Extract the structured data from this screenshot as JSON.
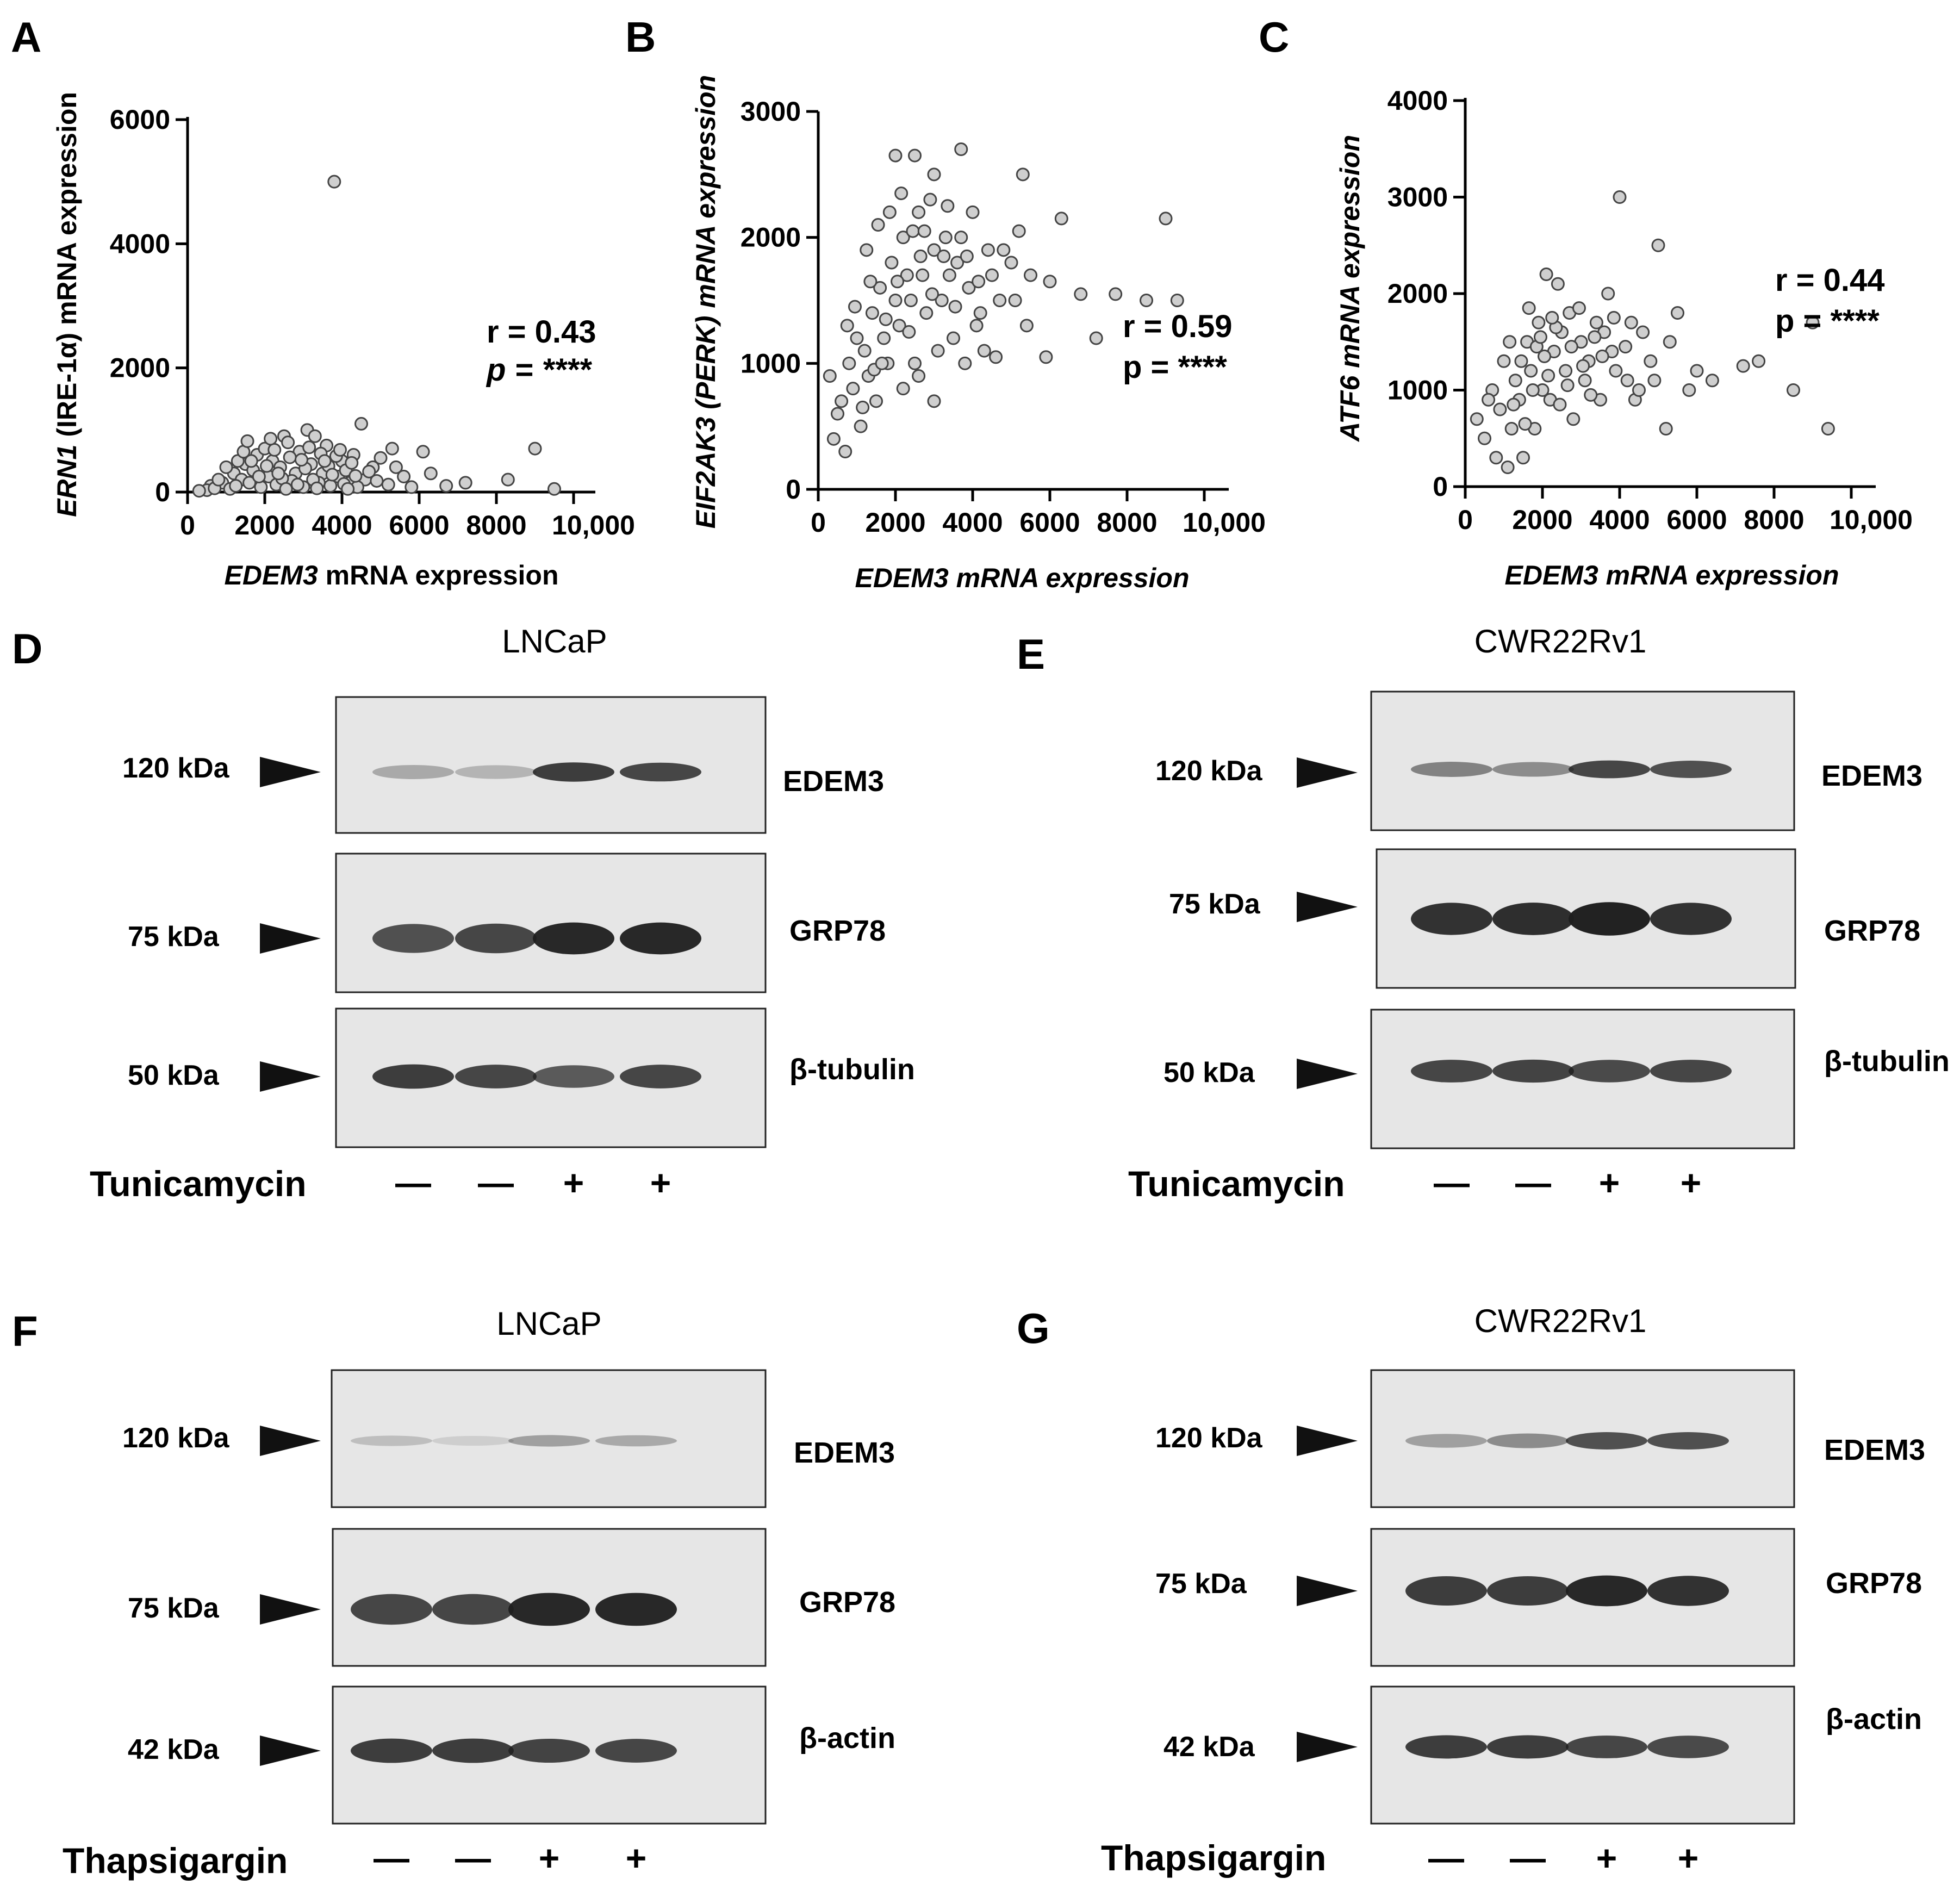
{
  "chart_data": [
    {
      "panel": "A",
      "type": "scatter",
      "xlabel_italic": "EDEM3",
      "xlabel_rest": " mRNA expression",
      "ylabel_italic": "ERN1",
      "ylabel_rest": " (IRE-1α) mRNA expression",
      "xticks": [
        "0",
        "2000",
        "4000",
        "6000",
        "8000",
        "10,000"
      ],
      "yticks": [
        "0",
        "2000",
        "4000",
        "6000"
      ],
      "xlim": [
        0,
        10000
      ],
      "ylim": [
        0,
        6000
      ],
      "r_label": "r = 0.43",
      "p_label": "p = ****",
      "points": [
        [
          3800,
          5000
        ],
        [
          4500,
          1100
        ],
        [
          3100,
          1000
        ],
        [
          2500,
          900
        ],
        [
          5300,
          700
        ],
        [
          6100,
          650
        ],
        [
          9000,
          700
        ],
        [
          8300,
          200
        ],
        [
          7200,
          150
        ],
        [
          9500,
          50
        ],
        [
          1200,
          300
        ],
        [
          1500,
          450
        ],
        [
          1800,
          600
        ],
        [
          2000,
          700
        ],
        [
          2200,
          500
        ],
        [
          2600,
          800
        ],
        [
          2900,
          650
        ],
        [
          3300,
          900
        ],
        [
          3600,
          750
        ],
        [
          4000,
          500
        ],
        [
          4300,
          600
        ],
        [
          4800,
          400
        ],
        [
          5000,
          550
        ],
        [
          5600,
          250
        ],
        [
          6300,
          300
        ],
        [
          600,
          100
        ],
        [
          900,
          150
        ],
        [
          1100,
          50
        ],
        [
          1400,
          200
        ],
        [
          1700,
          350
        ],
        [
          2100,
          250
        ],
        [
          2400,
          400
        ],
        [
          2800,
          300
        ],
        [
          3200,
          450
        ],
        [
          3500,
          300
        ],
        [
          3900,
          250
        ],
        [
          4200,
          150
        ],
        [
          4600,
          200
        ],
        [
          5200,
          120
        ],
        [
          5800,
          80
        ],
        [
          1300,
          500
        ],
        [
          1600,
          150
        ],
        [
          1900,
          80
        ],
        [
          2300,
          120
        ],
        [
          2700,
          180
        ],
        [
          3000,
          80
        ],
        [
          3400,
          150
        ],
        [
          3700,
          100
        ],
        [
          4100,
          350
        ],
        [
          4400,
          80
        ],
        [
          500,
          30
        ],
        [
          700,
          60
        ],
        [
          800,
          200
        ],
        [
          1000,
          400
        ],
        [
          1250,
          100
        ],
        [
          1450,
          650
        ],
        [
          1650,
          500
        ],
        [
          1850,
          250
        ],
        [
          2050,
          420
        ],
        [
          2250,
          680
        ],
        [
          2450,
          220
        ],
        [
          2650,
          560
        ],
        [
          2850,
          120
        ],
        [
          3050,
          380
        ],
        [
          3250,
          200
        ],
        [
          3450,
          620
        ],
        [
          3650,
          420
        ],
        [
          3850,
          580
        ],
        [
          4050,
          130
        ],
        [
          4250,
          470
        ],
        [
          4700,
          330
        ],
        [
          4900,
          180
        ],
        [
          5400,
          400
        ],
        [
          6700,
          100
        ],
        [
          300,
          20
        ],
        [
          1550,
          820
        ],
        [
          2150,
          860
        ],
        [
          2350,
          300
        ],
        [
          2550,
          50
        ],
        [
          2950,
          520
        ],
        [
          3150,
          720
        ],
        [
          3350,
          60
        ],
        [
          3550,
          500
        ],
        [
          3750,
          280
        ],
        [
          3950,
          680
        ],
        [
          4150,
          50
        ],
        [
          4350,
          260
        ]
      ]
    },
    {
      "panel": "B",
      "type": "scatter",
      "xlabel_italic": "EDEM3 mRNA expression",
      "xlabel_rest": "",
      "ylabel_italic": "EIF2AK3 (PERK) mRNA expression",
      "ylabel_rest": "",
      "xticks": [
        "0",
        "2000",
        "4000",
        "6000",
        "8000",
        "10,000"
      ],
      "yticks": [
        "0",
        "1000",
        "2000",
        "3000"
      ],
      "xlim": [
        0,
        10000
      ],
      "ylim": [
        0,
        3000
      ],
      "r_label": "r = 0.59",
      "p_label": "p = ****",
      "points": [
        [
          3700,
          2700
        ],
        [
          2000,
          2650
        ],
        [
          2500,
          2650
        ],
        [
          3000,
          2500
        ],
        [
          5300,
          2500
        ],
        [
          9000,
          2150
        ],
        [
          6300,
          2150
        ],
        [
          5200,
          2050
        ],
        [
          5500,
          1700
        ],
        [
          6000,
          1650
        ],
        [
          6800,
          1550
        ],
        [
          7700,
          1550
        ],
        [
          8500,
          1500
        ],
        [
          9300,
          1500
        ],
        [
          7200,
          1200
        ],
        [
          5900,
          1050
        ],
        [
          4600,
          1050
        ],
        [
          300,
          900
        ],
        [
          400,
          400
        ],
        [
          700,
          300
        ],
        [
          1100,
          500
        ],
        [
          1500,
          700
        ],
        [
          1800,
          1000
        ],
        [
          2100,
          1300
        ],
        [
          2400,
          1500
        ],
        [
          2700,
          1700
        ],
        [
          3000,
          1900
        ],
        [
          3300,
          2000
        ],
        [
          3600,
          1800
        ],
        [
          3900,
          1600
        ],
        [
          4200,
          1400
        ],
        [
          4500,
          1700
        ],
        [
          4800,
          1900
        ],
        [
          5100,
          1500
        ],
        [
          5400,
          1300
        ],
        [
          900,
          800
        ],
        [
          1200,
          1100
        ],
        [
          1400,
          1400
        ],
        [
          1600,
          1600
        ],
        [
          1900,
          1800
        ],
        [
          2200,
          2000
        ],
        [
          2600,
          2200
        ],
        [
          2900,
          2300
        ],
        [
          3200,
          1500
        ],
        [
          3500,
          1200
        ],
        [
          3800,
          1000
        ],
        [
          4100,
          1300
        ],
        [
          4400,
          1900
        ],
        [
          600,
          700
        ],
        [
          800,
          1000
        ],
        [
          1000,
          1200
        ],
        [
          1300,
          900
        ],
        [
          1700,
          1200
        ],
        [
          2000,
          1500
        ],
        [
          2300,
          1700
        ],
        [
          2500,
          1000
        ],
        [
          2800,
          1400
        ],
        [
          3100,
          1100
        ],
        [
          3400,
          1700
        ],
        [
          3700,
          2000
        ],
        [
          4000,
          2200
        ],
        [
          4300,
          1100
        ],
        [
          4700,
          1500
        ],
        [
          5000,
          1800
        ],
        [
          500,
          600
        ],
        [
          1150,
          650
        ],
        [
          1450,
          950
        ],
        [
          1750,
          1350
        ],
        [
          2050,
          1650
        ],
        [
          2350,
          1250
        ],
        [
          2650,
          1850
        ],
        [
          2950,
          1550
        ],
        [
          3250,
          1850
        ],
        [
          3550,
          1450
        ],
        [
          3850,
          1850
        ],
        [
          4150,
          1650
        ],
        [
          2150,
          2350
        ],
        [
          2450,
          2050
        ],
        [
          1550,
          2100
        ],
        [
          1250,
          1900
        ],
        [
          1850,
          2200
        ],
        [
          2750,
          2050
        ],
        [
          3350,
          2250
        ],
        [
          1650,
          1000
        ],
        [
          950,
          1450
        ],
        [
          750,
          1300
        ],
        [
          1350,
          1650
        ],
        [
          2200,
          800
        ],
        [
          2600,
          900
        ],
        [
          3000,
          700
        ]
      ]
    },
    {
      "panel": "C",
      "type": "scatter",
      "xlabel_italic": "EDEM3 mRNA expression",
      "xlabel_rest": "",
      "ylabel_italic": "ATF6 mRNA expression",
      "ylabel_rest": "",
      "xticks": [
        "0",
        "2000",
        "4000",
        "6000",
        "8000",
        "10,000"
      ],
      "yticks": [
        "0",
        "1000",
        "2000",
        "3000",
        "4000"
      ],
      "xlim": [
        0,
        10000
      ],
      "ylim": [
        0,
        4000
      ],
      "r_label": "r = 0.44",
      "p_label": "p = ****",
      "points": [
        [
          4000,
          3000
        ],
        [
          5000,
          2500
        ],
        [
          9000,
          1700
        ],
        [
          9400,
          600
        ],
        [
          8500,
          1000
        ],
        [
          7600,
          1300
        ],
        [
          7200,
          1250
        ],
        [
          5500,
          1800
        ],
        [
          6000,
          1200
        ],
        [
          5800,
          1000
        ],
        [
          6400,
          1100
        ],
        [
          5200,
          600
        ],
        [
          3700,
          2000
        ],
        [
          2400,
          2100
        ],
        [
          2100,
          2200
        ],
        [
          300,
          700
        ],
        [
          500,
          500
        ],
        [
          800,
          300
        ],
        [
          1100,
          200
        ],
        [
          1500,
          300
        ],
        [
          1800,
          600
        ],
        [
          2200,
          900
        ],
        [
          2600,
          1200
        ],
        [
          3000,
          1500
        ],
        [
          3400,
          1700
        ],
        [
          3800,
          1400
        ],
        [
          4200,
          1100
        ],
        [
          4600,
          1600
        ],
        [
          700,
          1000
        ],
        [
          1000,
          1300
        ],
        [
          1300,
          1100
        ],
        [
          1600,
          1500
        ],
        [
          1900,
          1700
        ],
        [
          2300,
          1400
        ],
        [
          2700,
          1800
        ],
        [
          3100,
          1100
        ],
        [
          3500,
          900
        ],
        [
          3900,
          1200
        ],
        [
          4300,
          1700
        ],
        [
          900,
          800
        ],
        [
          1200,
          600
        ],
        [
          1400,
          900
        ],
        [
          1700,
          1200
        ],
        [
          2000,
          1000
        ],
        [
          2500,
          1600
        ],
        [
          2800,
          700
        ],
        [
          3200,
          1300
        ],
        [
          3600,
          1600
        ],
        [
          4400,
          900
        ],
        [
          4800,
          1300
        ],
        [
          600,
          900
        ],
        [
          1150,
          1500
        ],
        [
          1450,
          1300
        ],
        [
          1750,
          1000
        ],
        [
          2050,
          1350
        ],
        [
          2350,
          1650
        ],
        [
          2650,
          1050
        ],
        [
          2950,
          1850
        ],
        [
          3250,
          950
        ],
        [
          3550,
          1350
        ],
        [
          3850,
          1750
        ],
        [
          4150,
          1450
        ],
        [
          1250,
          850
        ],
        [
          1550,
          650
        ],
        [
          1850,
          1450
        ],
        [
          2150,
          1150
        ],
        [
          2450,
          850
        ],
        [
          2750,
          1450
        ],
        [
          3050,
          1250
        ],
        [
          3350,
          1550
        ],
        [
          1650,
          1850
        ],
        [
          1950,
          1550
        ],
        [
          2250,
          1750
        ],
        [
          5300,
          1500
        ],
        [
          4900,
          1100
        ],
        [
          4500,
          1000
        ]
      ]
    }
  ],
  "blots": {
    "D": {
      "letter": "D",
      "cell_line": "LNCaP",
      "rows": [
        {
          "kda": "120 kDa",
          "protein": "EDEM3"
        },
        {
          "kda": "75 kDa",
          "protein": "GRP78"
        },
        {
          "kda": "50 kDa",
          "protein": "β-tubulin"
        }
      ],
      "treatment": "Tunicamycin",
      "signs": [
        "—",
        "—",
        "+",
        "+"
      ],
      "lane_intensity": [
        [
          0.3,
          0.25,
          0.85,
          0.8
        ],
        [
          0.75,
          0.8,
          0.95,
          0.95
        ],
        [
          0.85,
          0.8,
          0.7,
          0.8
        ]
      ]
    },
    "E": {
      "letter": "E",
      "cell_line": "CWR22Rv1",
      "rows": [
        {
          "kda": "120 kDa",
          "protein": "EDEM3"
        },
        {
          "kda": "75 kDa",
          "protein": "GRP78"
        },
        {
          "kda": "50 kDa",
          "protein": "β-tubulin"
        }
      ],
      "treatment": "Tunicamycin",
      "signs": [
        "—",
        "—",
        "+",
        "+"
      ],
      "lane_intensity": [
        [
          0.5,
          0.45,
          0.8,
          0.75
        ],
        [
          0.9,
          0.92,
          0.98,
          0.9
        ],
        [
          0.8,
          0.82,
          0.78,
          0.8
        ]
      ]
    },
    "F": {
      "letter": "F",
      "cell_line": "LNCaP",
      "rows": [
        {
          "kda": "120 kDa",
          "protein": "EDEM3"
        },
        {
          "kda": "75 kDa",
          "protein": "GRP78"
        },
        {
          "kda": "42 kDa",
          "protein": "β-actin"
        }
      ],
      "treatment": "Thapsigargin",
      "signs": [
        "—",
        "—",
        "+",
        "+"
      ],
      "lane_intensity": [
        [
          0.2,
          0.12,
          0.35,
          0.3
        ],
        [
          0.8,
          0.8,
          0.95,
          0.95
        ],
        [
          0.85,
          0.85,
          0.82,
          0.8
        ]
      ]
    },
    "G": {
      "letter": "G",
      "cell_line": "CWR22Rv1",
      "rows": [
        {
          "kda": "120 kDa",
          "protein": "EDEM3"
        },
        {
          "kda": "75 kDa",
          "protein": "GRP78"
        },
        {
          "kda": "42 kDa",
          "protein": "β-actin"
        }
      ],
      "treatment": "Thapsigargin",
      "signs": [
        "—",
        "—",
        "+",
        "+"
      ],
      "lane_intensity": [
        [
          0.35,
          0.45,
          0.75,
          0.75
        ],
        [
          0.85,
          0.85,
          0.95,
          0.9
        ],
        [
          0.85,
          0.85,
          0.8,
          0.78
        ]
      ]
    }
  },
  "colors": {
    "point_fill": "#cfcfcf",
    "point_stroke": "#444444",
    "blot_bg": "#e6e6e6",
    "band": "#1e1e1e"
  }
}
